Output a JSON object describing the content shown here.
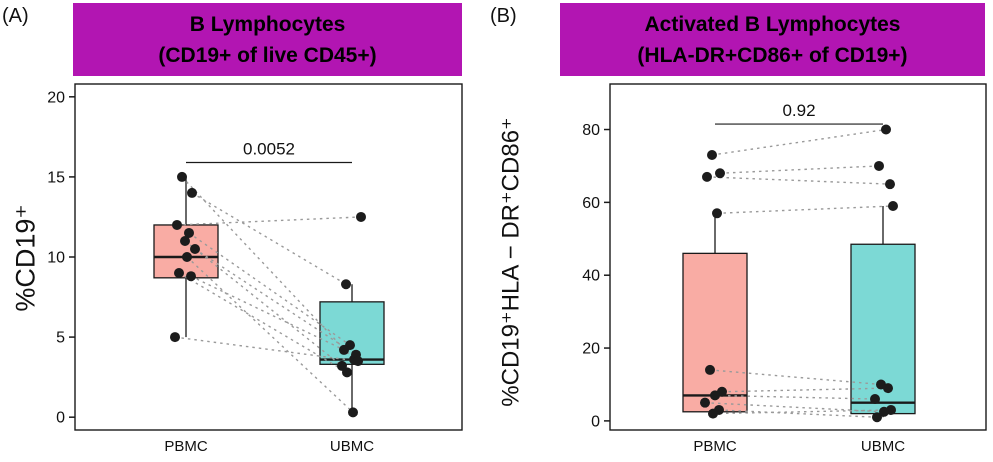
{
  "colors": {
    "banner": "#B215B2",
    "pbmc_box": "#F9ACA4",
    "ubmc_box": "#7CD9D5",
    "point": "#1c1c1c",
    "pair_line": "#9a9a9a",
    "axis": "#1a1a1a"
  },
  "chart_data": [
    {
      "type": "boxplot-paired",
      "panel_label": "(A)",
      "title": "B Lymphocytes",
      "subtitle": "(CD19+ of live CD45+)",
      "ylabel": "%CD19⁺",
      "categories": [
        "PBMC",
        "UBMC"
      ],
      "yticks": [
        0,
        5,
        10,
        15,
        20
      ],
      "ylim": [
        -0.8,
        20.8
      ],
      "p_value": "0.0052",
      "p_line_y": 15.9,
      "legend": "none",
      "grid": false,
      "groups": [
        {
          "name": "PBMC",
          "color": "#F9ACA4",
          "q1": 8.7,
          "median": 10.0,
          "q3": 12.0,
          "whisker_low": 5.0,
          "whisker_high": 15.0
        },
        {
          "name": "UBMC",
          "color": "#7CD9D5",
          "q1": 3.3,
          "median": 3.6,
          "q3": 7.2,
          "whisker_low": 0.3,
          "whisker_high": 8.3
        }
      ],
      "pairs": [
        [
          15.0,
          3.6
        ],
        [
          14.0,
          8.3
        ],
        [
          12.0,
          12.5
        ],
        [
          11.5,
          4.5
        ],
        [
          11.0,
          3.2
        ],
        [
          10.5,
          3.9
        ],
        [
          10.0,
          0.3
        ],
        [
          9.0,
          2.8
        ],
        [
          8.8,
          4.2
        ],
        [
          5.0,
          3.5
        ]
      ]
    },
    {
      "type": "boxplot-paired",
      "panel_label": "(B)",
      "title": "Activated B Lymphocytes",
      "subtitle": "(HLA-DR+CD86+ of CD19+)",
      "ylabel": "%CD19⁺HLA − DR⁺CD86⁺",
      "categories": [
        "PBMC",
        "UBMC"
      ],
      "yticks": [
        0,
        20,
        40,
        60,
        80
      ],
      "ylim": [
        -2.5,
        92.5
      ],
      "p_value": "0.92",
      "p_line_y": 81.5,
      "legend": "none",
      "grid": false,
      "groups": [
        {
          "name": "PBMC",
          "color": "#F9ACA4",
          "q1": 2.5,
          "median": 7.0,
          "q3": 46.0,
          "whisker_low": 2.0,
          "whisker_high": 57.0
        },
        {
          "name": "UBMC",
          "color": "#7CD9D5",
          "q1": 2.0,
          "median": 5.0,
          "q3": 48.5,
          "whisker_low": 1.0,
          "whisker_high": 59.0
        }
      ],
      "pairs": [
        [
          73.0,
          80.0
        ],
        [
          68.0,
          70.0
        ],
        [
          67.0,
          65.0
        ],
        [
          57.0,
          59.0
        ],
        [
          14.0,
          10.0
        ],
        [
          8.0,
          9.0
        ],
        [
          7.0,
          6.0
        ],
        [
          5.0,
          2.5
        ],
        [
          3.0,
          1.0
        ],
        [
          2.0,
          3.0
        ]
      ]
    }
  ]
}
